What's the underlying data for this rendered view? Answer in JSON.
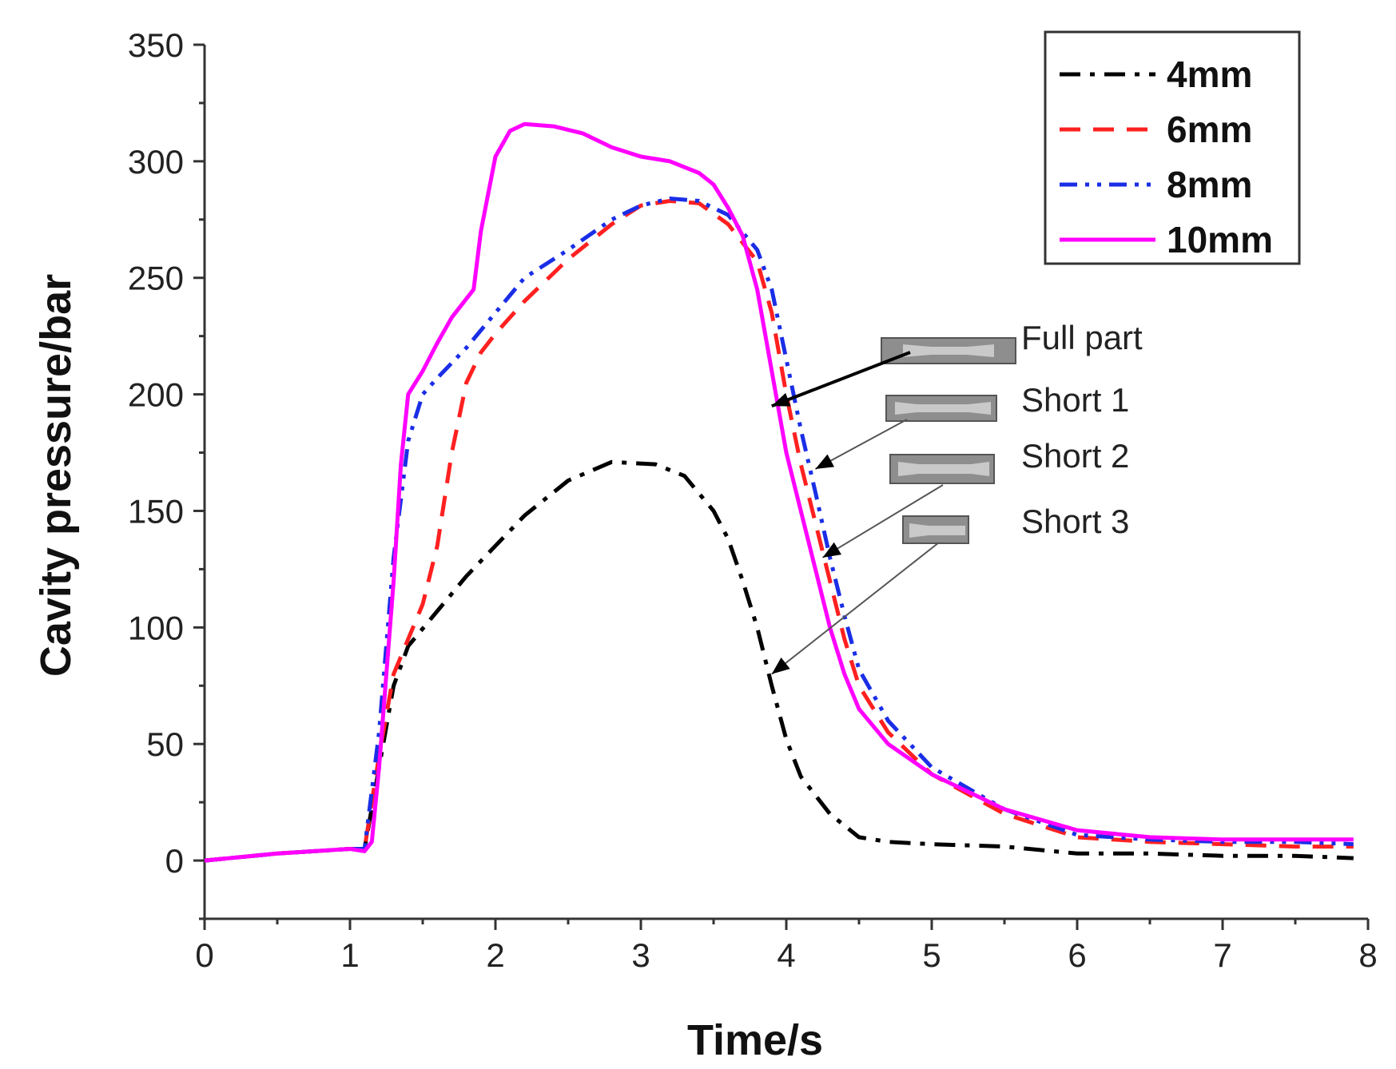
{
  "chart_data": {
    "type": "line",
    "xlabel": "Time/s",
    "ylabel": "Cavity pressure/bar",
    "xlim": [
      0,
      8
    ],
    "ylim": [
      -25,
      350
    ],
    "xticks": [
      0,
      1,
      2,
      3,
      4,
      5,
      6,
      7,
      8
    ],
    "yticks": [
      0,
      50,
      100,
      150,
      200,
      250,
      300,
      350
    ],
    "legend_position": "top-right",
    "series": [
      {
        "name": "4mm",
        "color": "#000000",
        "style": "dashdot",
        "points": [
          [
            0,
            0
          ],
          [
            0.5,
            3
          ],
          [
            1.0,
            5
          ],
          [
            1.1,
            5
          ],
          [
            1.2,
            40
          ],
          [
            1.3,
            75
          ],
          [
            1.4,
            92
          ],
          [
            1.6,
            107
          ],
          [
            1.8,
            122
          ],
          [
            2.0,
            135
          ],
          [
            2.2,
            148
          ],
          [
            2.5,
            163
          ],
          [
            2.8,
            171
          ],
          [
            3.1,
            170
          ],
          [
            3.3,
            165
          ],
          [
            3.5,
            150
          ],
          [
            3.6,
            138
          ],
          [
            3.7,
            120
          ],
          [
            3.8,
            100
          ],
          [
            3.9,
            75
          ],
          [
            4.0,
            52
          ],
          [
            4.1,
            36
          ],
          [
            4.3,
            20
          ],
          [
            4.5,
            10
          ],
          [
            4.7,
            8
          ],
          [
            5.0,
            7
          ],
          [
            5.5,
            6
          ],
          [
            6.0,
            3
          ],
          [
            6.5,
            3
          ],
          [
            7.0,
            2
          ],
          [
            7.5,
            2
          ],
          [
            7.9,
            1
          ]
        ]
      },
      {
        "name": "6mm",
        "color": "#ff2020",
        "style": "dashed",
        "points": [
          [
            0,
            0
          ],
          [
            0.5,
            3
          ],
          [
            1.0,
            5
          ],
          [
            1.1,
            5
          ],
          [
            1.2,
            45
          ],
          [
            1.3,
            80
          ],
          [
            1.4,
            95
          ],
          [
            1.5,
            110
          ],
          [
            1.6,
            135
          ],
          [
            1.7,
            175
          ],
          [
            1.8,
            205
          ],
          [
            1.9,
            218
          ],
          [
            2.0,
            226
          ],
          [
            2.2,
            240
          ],
          [
            2.5,
            258
          ],
          [
            2.8,
            273
          ],
          [
            3.0,
            281
          ],
          [
            3.2,
            283
          ],
          [
            3.4,
            282
          ],
          [
            3.6,
            273
          ],
          [
            3.8,
            257
          ],
          [
            3.9,
            235
          ],
          [
            4.0,
            200
          ],
          [
            4.1,
            170
          ],
          [
            4.2,
            145
          ],
          [
            4.3,
            120
          ],
          [
            4.4,
            95
          ],
          [
            4.5,
            75
          ],
          [
            4.7,
            55
          ],
          [
            5.0,
            37
          ],
          [
            5.5,
            20
          ],
          [
            6.0,
            10
          ],
          [
            6.5,
            8
          ],
          [
            7.0,
            7
          ],
          [
            7.5,
            6
          ],
          [
            7.9,
            6
          ]
        ]
      },
      {
        "name": "8mm",
        "color": "#1a2ee6",
        "style": "dashdotdot",
        "points": [
          [
            0,
            0
          ],
          [
            0.5,
            3
          ],
          [
            1.0,
            5
          ],
          [
            1.1,
            5
          ],
          [
            1.2,
            55
          ],
          [
            1.3,
            130
          ],
          [
            1.4,
            180
          ],
          [
            1.5,
            200
          ],
          [
            1.6,
            207
          ],
          [
            1.8,
            220
          ],
          [
            2.0,
            235
          ],
          [
            2.2,
            250
          ],
          [
            2.5,
            262
          ],
          [
            2.8,
            275
          ],
          [
            3.0,
            281
          ],
          [
            3.2,
            284
          ],
          [
            3.4,
            283
          ],
          [
            3.6,
            277
          ],
          [
            3.8,
            262
          ],
          [
            3.9,
            245
          ],
          [
            4.0,
            215
          ],
          [
            4.1,
            185
          ],
          [
            4.2,
            158
          ],
          [
            4.3,
            130
          ],
          [
            4.4,
            105
          ],
          [
            4.5,
            82
          ],
          [
            4.7,
            60
          ],
          [
            5.0,
            40
          ],
          [
            5.5,
            22
          ],
          [
            6.0,
            11
          ],
          [
            6.5,
            9
          ],
          [
            7.0,
            8
          ],
          [
            7.5,
            8
          ],
          [
            7.9,
            7
          ]
        ]
      },
      {
        "name": "10mm",
        "color": "#ff00ff",
        "style": "solid",
        "points": [
          [
            0,
            0
          ],
          [
            0.5,
            3
          ],
          [
            1.0,
            5
          ],
          [
            1.1,
            4
          ],
          [
            1.15,
            8
          ],
          [
            1.2,
            40
          ],
          [
            1.3,
            120
          ],
          [
            1.35,
            170
          ],
          [
            1.4,
            200
          ],
          [
            1.5,
            210
          ],
          [
            1.6,
            222
          ],
          [
            1.7,
            233
          ],
          [
            1.85,
            245
          ],
          [
            1.9,
            270
          ],
          [
            2.0,
            302
          ],
          [
            2.1,
            313
          ],
          [
            2.2,
            316
          ],
          [
            2.4,
            315
          ],
          [
            2.6,
            312
          ],
          [
            2.8,
            306
          ],
          [
            3.0,
            302
          ],
          [
            3.2,
            300
          ],
          [
            3.4,
            295
          ],
          [
            3.5,
            290
          ],
          [
            3.6,
            280
          ],
          [
            3.7,
            268
          ],
          [
            3.8,
            245
          ],
          [
            3.9,
            210
          ],
          [
            4.0,
            175
          ],
          [
            4.1,
            150
          ],
          [
            4.2,
            125
          ],
          [
            4.3,
            100
          ],
          [
            4.4,
            80
          ],
          [
            4.5,
            65
          ],
          [
            4.7,
            50
          ],
          [
            5.0,
            37
          ],
          [
            5.5,
            22
          ],
          [
            6.0,
            13
          ],
          [
            6.5,
            10
          ],
          [
            7.0,
            9
          ],
          [
            7.5,
            9
          ],
          [
            7.9,
            9
          ]
        ]
      }
    ],
    "annotations": [
      {
        "text": "Full part",
        "target": [
          3.9,
          195
        ]
      },
      {
        "text": "Short 1",
        "target": [
          4.2,
          168
        ]
      },
      {
        "text": "Short 2",
        "target": [
          4.25,
          130
        ]
      },
      {
        "text": "Short 3",
        "target": [
          3.9,
          80
        ]
      }
    ]
  }
}
